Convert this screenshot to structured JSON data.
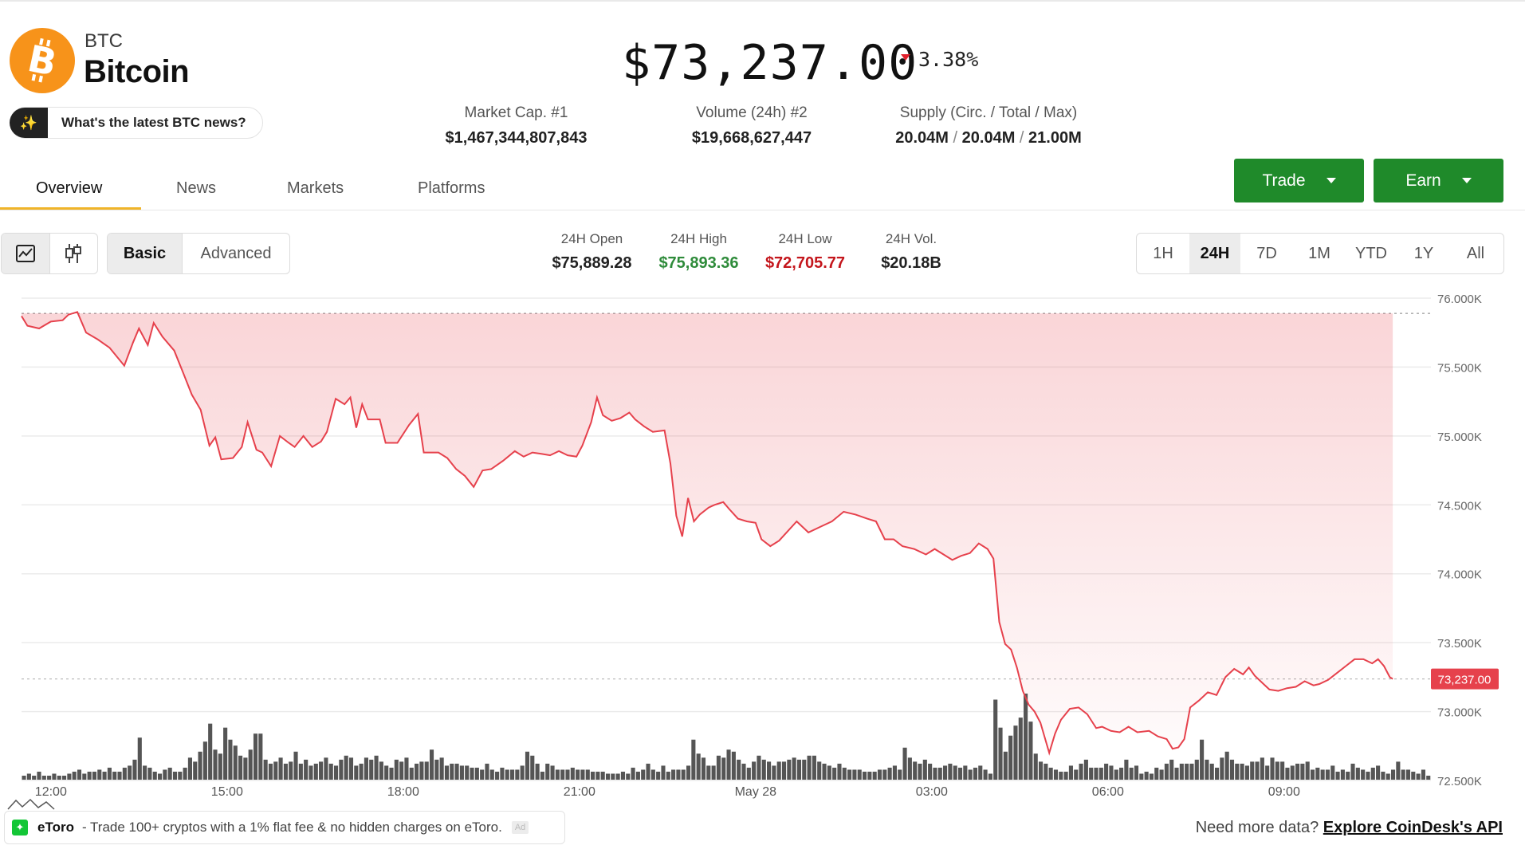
{
  "header": {
    "ticker": "BTC",
    "name": "Bitcoin",
    "news_button": "What's the latest BTC news?",
    "price": "$73,237.00",
    "change": "3.38%",
    "change_direction": "down",
    "stats": [
      {
        "label": "Market Cap. #1",
        "value": "$1,467,344,807,843"
      },
      {
        "label": "Volume (24h) #2",
        "value": "$19,668,627,447"
      },
      {
        "label": "Supply (Circ. / Total / Max)",
        "parts": [
          "20.04M",
          "20.04M",
          "21.00M"
        ]
      }
    ]
  },
  "tabs": [
    "Overview",
    "News",
    "Markets",
    "Platforms"
  ],
  "active_tab": "Overview",
  "actions": {
    "trade": "Trade",
    "earn": "Earn"
  },
  "chart_controls": {
    "chart_type_icons": [
      "line-chart-icon",
      "candlestick-icon"
    ],
    "modes": [
      "Basic",
      "Advanced"
    ],
    "active_mode": "Basic",
    "ranges": [
      "1H",
      "24H",
      "7D",
      "1M",
      "YTD",
      "1Y",
      "All"
    ],
    "active_range": "24H"
  },
  "ohlc": [
    {
      "label": "24H Open",
      "value": "$75,889.28",
      "color": "#222222"
    },
    {
      "label": "24H High",
      "value": "$75,893.36",
      "color": "#2e8b3a"
    },
    {
      "label": "24H Low",
      "value": "$72,705.77",
      "color": "#c4161c"
    },
    {
      "label": "24H Vol.",
      "value": "$20.18B",
      "color": "#222222"
    }
  ],
  "colors": {
    "accent": "#f0b429",
    "line": "#e6414c",
    "green_button": "#1f8a2a",
    "price_tag": "#e6414c",
    "volume": "#555555"
  },
  "chart_data": {
    "type": "line",
    "y_ticks": [
      "76.000K",
      "75.500K",
      "75.000K",
      "74.500K",
      "74.000K",
      "73.500K",
      "73.000K",
      "72.500K"
    ],
    "ylim": [
      72500,
      76000
    ],
    "x_ticks": [
      {
        "label": "12:00",
        "t": 0.5
      },
      {
        "label": "15:00",
        "t": 3.5
      },
      {
        "label": "18:00",
        "t": 6.5
      },
      {
        "label": "21:00",
        "t": 9.5
      },
      {
        "label": "May 28",
        "t": 12.5
      },
      {
        "label": "03:00",
        "t": 15.5
      },
      {
        "label": "06:00",
        "t": 18.5
      },
      {
        "label": "09:00",
        "t": 21.5
      }
    ],
    "xlim": [
      0,
      24
    ],
    "open_price": 75889.28,
    "current_price": 73237.0,
    "current_price_label": "73,237.00",
    "price": [
      [
        0.0,
        75870
      ],
      [
        0.1,
        75800
      ],
      [
        0.3,
        75780
      ],
      [
        0.5,
        75830
      ],
      [
        0.7,
        75840
      ],
      [
        0.8,
        75880
      ],
      [
        0.95,
        75900
      ],
      [
        1.1,
        75750
      ],
      [
        1.3,
        75700
      ],
      [
        1.5,
        75640
      ],
      [
        1.75,
        75510
      ],
      [
        1.9,
        75680
      ],
      [
        2.0,
        75780
      ],
      [
        2.15,
        75660
      ],
      [
        2.25,
        75820
      ],
      [
        2.4,
        75720
      ],
      [
        2.6,
        75620
      ],
      [
        2.75,
        75460
      ],
      [
        2.9,
        75300
      ],
      [
        3.05,
        75190
      ],
      [
        3.2,
        74930
      ],
      [
        3.3,
        74990
      ],
      [
        3.4,
        74830
      ],
      [
        3.6,
        74840
      ],
      [
        3.75,
        74920
      ],
      [
        3.85,
        75100
      ],
      [
        4.0,
        74900
      ],
      [
        4.1,
        74880
      ],
      [
        4.25,
        74780
      ],
      [
        4.4,
        75000
      ],
      [
        4.55,
        74950
      ],
      [
        4.65,
        74920
      ],
      [
        4.8,
        75000
      ],
      [
        4.95,
        74920
      ],
      [
        5.1,
        74960
      ],
      [
        5.2,
        75030
      ],
      [
        5.35,
        75270
      ],
      [
        5.5,
        75230
      ],
      [
        5.6,
        75280
      ],
      [
        5.7,
        75060
      ],
      [
        5.8,
        75230
      ],
      [
        5.9,
        75120
      ],
      [
        6.1,
        75120
      ],
      [
        6.2,
        74950
      ],
      [
        6.4,
        74950
      ],
      [
        6.6,
        75080
      ],
      [
        6.75,
        75160
      ],
      [
        6.85,
        74880
      ],
      [
        6.95,
        74880
      ],
      [
        7.1,
        74880
      ],
      [
        7.25,
        74840
      ],
      [
        7.4,
        74760
      ],
      [
        7.55,
        74710
      ],
      [
        7.7,
        74630
      ],
      [
        7.85,
        74750
      ],
      [
        8.0,
        74760
      ],
      [
        8.2,
        74820
      ],
      [
        8.4,
        74890
      ],
      [
        8.55,
        74850
      ],
      [
        8.7,
        74880
      ],
      [
        8.85,
        74870
      ],
      [
        9.0,
        74860
      ],
      [
        9.15,
        74890
      ],
      [
        9.3,
        74860
      ],
      [
        9.45,
        74850
      ],
      [
        9.55,
        74930
      ],
      [
        9.7,
        75100
      ],
      [
        9.8,
        75280
      ],
      [
        9.9,
        75150
      ],
      [
        10.05,
        75110
      ],
      [
        10.2,
        75130
      ],
      [
        10.35,
        75170
      ],
      [
        10.45,
        75120
      ],
      [
        10.6,
        75070
      ],
      [
        10.75,
        75030
      ],
      [
        10.95,
        75040
      ],
      [
        11.05,
        74800
      ],
      [
        11.15,
        74420
      ],
      [
        11.25,
        74270
      ],
      [
        11.35,
        74550
      ],
      [
        11.45,
        74380
      ],
      [
        11.55,
        74430
      ],
      [
        11.7,
        74480
      ],
      [
        11.8,
        74500
      ],
      [
        11.95,
        74520
      ],
      [
        12.05,
        74470
      ],
      [
        12.2,
        74400
      ],
      [
        12.35,
        74380
      ],
      [
        12.5,
        74370
      ],
      [
        12.6,
        74250
      ],
      [
        12.75,
        74200
      ],
      [
        12.9,
        74240
      ],
      [
        13.05,
        74310
      ],
      [
        13.2,
        74380
      ],
      [
        13.4,
        74300
      ],
      [
        13.6,
        74340
      ],
      [
        13.8,
        74380
      ],
      [
        14.0,
        74450
      ],
      [
        14.2,
        74430
      ],
      [
        14.4,
        74400
      ],
      [
        14.55,
        74380
      ],
      [
        14.7,
        74250
      ],
      [
        14.85,
        74250
      ],
      [
        15.0,
        74200
      ],
      [
        15.2,
        74180
      ],
      [
        15.4,
        74140
      ],
      [
        15.55,
        74180
      ],
      [
        15.7,
        74140
      ],
      [
        15.85,
        74100
      ],
      [
        16.0,
        74130
      ],
      [
        16.15,
        74150
      ],
      [
        16.3,
        74220
      ],
      [
        16.45,
        74180
      ],
      [
        16.55,
        74110
      ],
      [
        16.65,
        73650
      ],
      [
        16.75,
        73490
      ],
      [
        16.85,
        73450
      ],
      [
        16.95,
        73320
      ],
      [
        17.05,
        73150
      ],
      [
        17.15,
        73050
      ],
      [
        17.25,
        73000
      ],
      [
        17.35,
        72920
      ],
      [
        17.5,
        72700
      ],
      [
        17.6,
        72840
      ],
      [
        17.7,
        72940
      ],
      [
        17.85,
        73020
      ],
      [
        18.0,
        73030
      ],
      [
        18.15,
        72980
      ],
      [
        18.3,
        72880
      ],
      [
        18.4,
        72890
      ],
      [
        18.55,
        72860
      ],
      [
        18.7,
        72850
      ],
      [
        18.85,
        72890
      ],
      [
        19.0,
        72850
      ],
      [
        19.2,
        72860
      ],
      [
        19.35,
        72820
      ],
      [
        19.5,
        72800
      ],
      [
        19.6,
        72730
      ],
      [
        19.7,
        72740
      ],
      [
        19.8,
        72800
      ],
      [
        19.9,
        73030
      ],
      [
        20.05,
        73080
      ],
      [
        20.2,
        73140
      ],
      [
        20.35,
        73120
      ],
      [
        20.5,
        73250
      ],
      [
        20.65,
        73310
      ],
      [
        20.8,
        73270
      ],
      [
        20.9,
        73320
      ],
      [
        21.0,
        73260
      ],
      [
        21.15,
        73200
      ],
      [
        21.25,
        73160
      ],
      [
        21.4,
        73150
      ],
      [
        21.55,
        73170
      ],
      [
        21.7,
        73180
      ],
      [
        21.85,
        73220
      ],
      [
        22.0,
        73190
      ],
      [
        22.1,
        73200
      ],
      [
        22.25,
        73230
      ],
      [
        22.4,
        73280
      ],
      [
        22.55,
        73330
      ],
      [
        22.7,
        73380
      ],
      [
        22.85,
        73380
      ],
      [
        23.0,
        73350
      ],
      [
        23.1,
        73380
      ],
      [
        23.2,
        73330
      ],
      [
        23.3,
        73250
      ],
      [
        23.35,
        73237
      ]
    ],
    "volume_bars": [
      2,
      3,
      2,
      4,
      2,
      2,
      3,
      2,
      2,
      3,
      4,
      5,
      3,
      4,
      4,
      5,
      4,
      6,
      4,
      4,
      6,
      7,
      10,
      21,
      7,
      6,
      4,
      3,
      5,
      6,
      4,
      4,
      6,
      11,
      9,
      14,
      19,
      28,
      15,
      13,
      26,
      20,
      17,
      12,
      11,
      15,
      23,
      23,
      10,
      8,
      9,
      11,
      8,
      9,
      14,
      8,
      10,
      7,
      8,
      9,
      11,
      8,
      7,
      10,
      12,
      11,
      7,
      8,
      11,
      10,
      12,
      9,
      7,
      6,
      10,
      9,
      11,
      6,
      8,
      9,
      9,
      15,
      10,
      11,
      7,
      8,
      8,
      7,
      7,
      6,
      6,
      5,
      8,
      5,
      4,
      6,
      5,
      5,
      5,
      7,
      14,
      12,
      8,
      4,
      8,
      7,
      5,
      5,
      5,
      6,
      5,
      5,
      5,
      4,
      4,
      4,
      3,
      3,
      3,
      4,
      3,
      6,
      4,
      5,
      8,
      5,
      4,
      7,
      4,
      5,
      5,
      5,
      7,
      20,
      13,
      11,
      7,
      7,
      12,
      11,
      15,
      14,
      10,
      8,
      6,
      9,
      12,
      10,
      9,
      7,
      9,
      9,
      10,
      11,
      10,
      10,
      12,
      12,
      9,
      8,
      7,
      6,
      8,
      6,
      5,
      5,
      5,
      4,
      4,
      4,
      5,
      5,
      6,
      7,
      5,
      16,
      11,
      9,
      8,
      10,
      8,
      6,
      6,
      7,
      8,
      7,
      6,
      7,
      5,
      6,
      7,
      5,
      3,
      40,
      26,
      14,
      22,
      27,
      31,
      43,
      29,
      13,
      9,
      8,
      6,
      5,
      4,
      4,
      7,
      5,
      8,
      10,
      6,
      6,
      6,
      8,
      7,
      5,
      6,
      10,
      6,
      7,
      3,
      4,
      3,
      6,
      5,
      8,
      10,
      6,
      8,
      8,
      8,
      10,
      20,
      10,
      8,
      6,
      11,
      14,
      10,
      8,
      8,
      7,
      9,
      9,
      11,
      7,
      11,
      9,
      9,
      6,
      7,
      8,
      8,
      9,
      5,
      6,
      5,
      5,
      7,
      4,
      5,
      4,
      8,
      6,
      5,
      4,
      6,
      7,
      4,
      3,
      5,
      9,
      5,
      5,
      4,
      3,
      5,
      2
    ]
  },
  "footer": {
    "ad_brand": "eToro",
    "ad_text": "- Trade 100+ cryptos with a 1% flat fee & no hidden charges on eToro.",
    "ad_badge": "Ad",
    "api_prefix": "Need more data?",
    "api_link": "Explore CoinDesk's API"
  }
}
